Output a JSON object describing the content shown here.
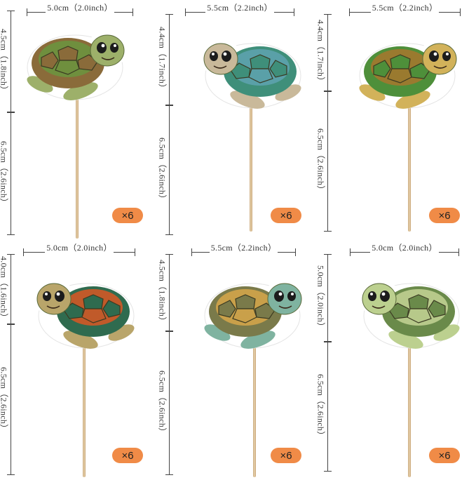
{
  "toppers": [
    {
      "width": "5.0cm（2.0inch）",
      "head": "4.5cm（1.8inch）",
      "stick": "6.5cm（2.6inch）",
      "qty": "×6",
      "colors": {
        "shell": "#8a6b3a",
        "shell2": "#6f8f3e",
        "skin": "#9db06a"
      }
    },
    {
      "width": "5.5cm（2.2inch）",
      "head": "4.4cm（1.7inch）",
      "stick": "6.5cm（2.6inch）",
      "qty": "×6",
      "colors": {
        "shell": "#3f8f7a",
        "shell2": "#5aa0a8",
        "skin": "#c9b99a"
      }
    },
    {
      "width": "5.5cm（2.2inch）",
      "head": "4.4cm（1.7inch）",
      "stick": "6.5cm（2.6inch）",
      "qty": "×6",
      "colors": {
        "shell": "#4e8f3a",
        "shell2": "#9a7a2f",
        "skin": "#d2b25a"
      }
    },
    {
      "width": "5.0cm（2.0inch）",
      "head": "4.0cm（1.6inch）",
      "stick": "6.5cm（2.6inch）",
      "qty": "×6",
      "colors": {
        "shell": "#2f6b4f",
        "shell2": "#c05a2a",
        "skin": "#b9a56a"
      }
    },
    {
      "width": "5.5cm（2.2inch）",
      "head": "4.5cm（1.8inch）",
      "stick": "6.5cm（2.6inch）",
      "qty": "×6",
      "colors": {
        "shell": "#7a7a4a",
        "shell2": "#c9a04a",
        "skin": "#7fb3a0"
      }
    },
    {
      "width": "5.0cm（2.0inch）",
      "head": "5.0cm（2.0inch）",
      "stick": "6.5cm（2.6inch）",
      "qty": "×6",
      "colors": {
        "shell": "#6a8a4a",
        "shell2": "#b7c98a",
        "skin": "#bcd08f"
      }
    }
  ],
  "accent": "#f08b47"
}
